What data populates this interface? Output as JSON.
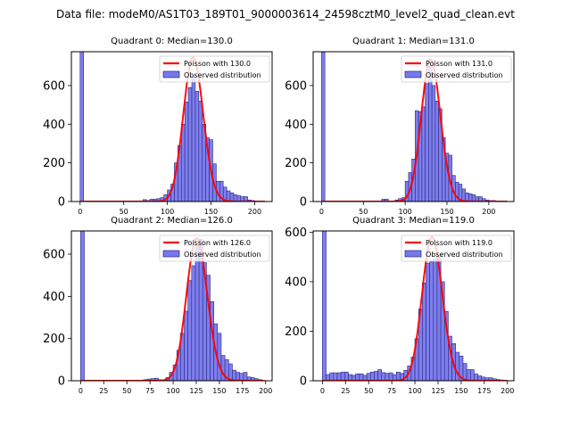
{
  "suptitle": "Data file: modeM0/AS1T03_189T01_9000003614_24598cztM0_level2_quad_clean.evt",
  "colors": {
    "bar_fill": "#7777ee",
    "bar_edge": "#2a2a7a",
    "poisson": "#ff0000"
  },
  "chart_data": [
    {
      "type": "bar",
      "title": "Quadrant 0: Median=130.0",
      "median": 130.0,
      "bin_width": 4,
      "xlim": [
        -10,
        220
      ],
      "ylim": [
        0,
        775
      ],
      "xticks": [
        0,
        50,
        100,
        150,
        200
      ],
      "yticks": [
        0,
        200,
        400,
        600
      ],
      "legend": [
        "Poisson with 130.0",
        "Observed distribution"
      ],
      "legend_position": "top-right",
      "poisson_peak": 745,
      "zero_bin_clipped": true,
      "bins": [
        0,
        72,
        76,
        80,
        84,
        88,
        92,
        96,
        100,
        104,
        108,
        112,
        116,
        120,
        124,
        128,
        132,
        136,
        140,
        144,
        148,
        152,
        156,
        160,
        164,
        168,
        172,
        176,
        180,
        184,
        188,
        192,
        196,
        200,
        204
      ],
      "values": [
        800,
        10,
        5,
        12,
        12,
        15,
        20,
        35,
        60,
        90,
        200,
        290,
        400,
        515,
        590,
        650,
        570,
        520,
        400,
        330,
        320,
        195,
        105,
        105,
        75,
        55,
        45,
        35,
        30,
        25,
        25,
        8,
        5,
        3,
        2
      ]
    },
    {
      "type": "bar",
      "title": "Quadrant 1: Median=131.0",
      "median": 131.0,
      "bin_width": 4,
      "xlim": [
        -10,
        230
      ],
      "ylim": [
        0,
        775
      ],
      "xticks": [
        0,
        50,
        100,
        150,
        200
      ],
      "yticks": [
        0,
        200,
        400,
        600
      ],
      "legend": [
        "Poisson with 131.0",
        "Observed distribution"
      ],
      "legend_position": "top-right",
      "poisson_peak": 735,
      "zero_bin_clipped": true,
      "bins": [
        0,
        72,
        76,
        88,
        92,
        96,
        100,
        104,
        108,
        112,
        116,
        120,
        124,
        128,
        132,
        136,
        140,
        144,
        148,
        152,
        156,
        160,
        164,
        168,
        172,
        176,
        180,
        184,
        188,
        192,
        196,
        200,
        204,
        208
      ],
      "values": [
        800,
        12,
        12,
        8,
        15,
        20,
        105,
        150,
        220,
        470,
        465,
        490,
        610,
        700,
        600,
        520,
        480,
        330,
        250,
        240,
        135,
        100,
        90,
        65,
        45,
        40,
        35,
        25,
        25,
        15,
        8,
        5,
        5,
        3
      ]
    },
    {
      "type": "bar",
      "title": "Quadrant 2: Median=126.0",
      "median": 126.0,
      "bin_width": 4,
      "xlim": [
        -10,
        207
      ],
      "ylim": [
        0,
        710
      ],
      "xticks": [
        0,
        25,
        50,
        75,
        100,
        125,
        150,
        175,
        200
      ],
      "yticks": [
        0,
        200,
        400,
        600
      ],
      "legend": [
        "Poisson with 126.0",
        "Observed distribution"
      ],
      "legend_position": "top-right",
      "poisson_peak": 675,
      "zero_bin_clipped": true,
      "bins": [
        0,
        68,
        72,
        76,
        80,
        84,
        92,
        96,
        100,
        104,
        108,
        112,
        116,
        120,
        124,
        128,
        132,
        136,
        140,
        144,
        148,
        152,
        156,
        160,
        164,
        168,
        172,
        176,
        180,
        184,
        188,
        192
      ],
      "values": [
        800,
        5,
        8,
        10,
        12,
        5,
        15,
        40,
        75,
        145,
        225,
        330,
        475,
        545,
        640,
        670,
        560,
        500,
        375,
        270,
        225,
        120,
        100,
        80,
        50,
        40,
        35,
        40,
        18,
        15,
        10,
        5
      ]
    },
    {
      "type": "bar",
      "title": "Quadrant 3: Median=119.0",
      "median": 119.0,
      "bin_width": 4,
      "xlim": [
        -10,
        207
      ],
      "ylim": [
        0,
        605
      ],
      "xticks": [
        0,
        25,
        50,
        75,
        100,
        125,
        150,
        175,
        200
      ],
      "yticks": [
        0,
        200,
        400,
        600
      ],
      "legend": [
        "Poisson with 119.0",
        "Observed distribution"
      ],
      "legend_position": "top-right",
      "poisson_peak": 580,
      "zero_bin_clipped": true,
      "bins": [
        0,
        4,
        8,
        12,
        16,
        20,
        24,
        28,
        32,
        36,
        40,
        44,
        48,
        52,
        56,
        60,
        64,
        68,
        72,
        76,
        80,
        84,
        88,
        92,
        96,
        100,
        104,
        108,
        112,
        116,
        120,
        124,
        128,
        132,
        136,
        140,
        144,
        148,
        152,
        156,
        160,
        164,
        168,
        172,
        176,
        180,
        184,
        188,
        192,
        196
      ],
      "values": [
        800,
        25,
        32,
        32,
        32,
        35,
        35,
        25,
        22,
        28,
        28,
        22,
        30,
        35,
        38,
        45,
        33,
        30,
        32,
        25,
        35,
        30,
        42,
        60,
        95,
        170,
        290,
        395,
        475,
        480,
        490,
        505,
        400,
        280,
        180,
        150,
        115,
        100,
        70,
        45,
        45,
        28,
        20,
        15,
        12,
        12,
        8,
        5,
        3,
        2
      ]
    }
  ]
}
